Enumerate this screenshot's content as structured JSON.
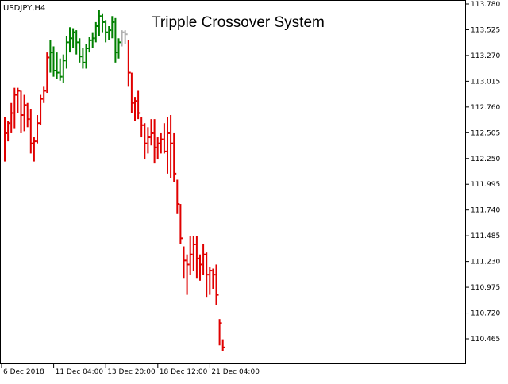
{
  "window": {
    "symbol_timeframe": "USDJPY,H4",
    "title": "Tripple Crossover System"
  },
  "colors": {
    "background": "#ffffff",
    "frame": "#000000",
    "bull": "#008000",
    "bear": "#e00000",
    "neutral": "#b0b0b0"
  },
  "chart_data": {
    "type": "ohlc-bar",
    "title": "Tripple Crossover System",
    "symbol": "USDJPY,H4",
    "y_axis_position": "right",
    "ylim": [
      110.3,
      113.78
    ],
    "y_ticks": [
      "113.780",
      "113.525",
      "113.270",
      "113.015",
      "112.760",
      "112.505",
      "112.250",
      "111.995",
      "111.740",
      "111.485",
      "111.230",
      "110.975",
      "110.720",
      "110.465"
    ],
    "x_ticks": [
      {
        "label": "6 Dec 2018",
        "bar": 0
      },
      {
        "label": "11 Dec 04:00",
        "bar": 16
      },
      {
        "label": "13 Dec 20:00",
        "bar": 32
      },
      {
        "label": "18 Dec 12:00",
        "bar": 48
      },
      {
        "label": "21 Dec 04:00",
        "bar": 64
      }
    ],
    "grid": false,
    "bars": [
      {
        "h": 112.66,
        "l": 112.22,
        "c": 112.5,
        "s": "bear"
      },
      {
        "h": 112.62,
        "l": 112.42,
        "c": 112.6,
        "s": "bear"
      },
      {
        "h": 112.8,
        "l": 112.5,
        "c": 112.7,
        "s": "bear"
      },
      {
        "h": 112.95,
        "l": 112.55,
        "c": 112.88,
        "s": "bear"
      },
      {
        "h": 112.95,
        "l": 112.7,
        "c": 112.92,
        "s": "bear"
      },
      {
        "h": 112.92,
        "l": 112.5,
        "c": 112.68,
        "s": "bear"
      },
      {
        "h": 112.88,
        "l": 112.52,
        "c": 112.78,
        "s": "bear"
      },
      {
        "h": 112.8,
        "l": 112.56,
        "c": 112.64,
        "s": "bear"
      },
      {
        "h": 112.74,
        "l": 112.3,
        "c": 112.4,
        "s": "bear"
      },
      {
        "h": 112.46,
        "l": 112.22,
        "c": 112.42,
        "s": "bear"
      },
      {
        "h": 112.68,
        "l": 112.4,
        "c": 112.6,
        "s": "bear"
      },
      {
        "h": 112.88,
        "l": 112.58,
        "c": 112.84,
        "s": "bear"
      },
      {
        "h": 112.96,
        "l": 112.8,
        "c": 112.92,
        "s": "bear"
      },
      {
        "h": 113.3,
        "l": 112.9,
        "c": 113.25,
        "s": "bear"
      },
      {
        "h": 113.42,
        "l": 113.1,
        "c": 113.3,
        "s": "bull"
      },
      {
        "h": 113.36,
        "l": 113.06,
        "c": 113.12,
        "s": "bull"
      },
      {
        "h": 113.3,
        "l": 113.04,
        "c": 113.1,
        "s": "bull"
      },
      {
        "h": 113.24,
        "l": 113.02,
        "c": 113.06,
        "s": "bull"
      },
      {
        "h": 113.28,
        "l": 113.0,
        "c": 113.22,
        "s": "bull"
      },
      {
        "h": 113.46,
        "l": 113.14,
        "c": 113.4,
        "s": "bull"
      },
      {
        "h": 113.55,
        "l": 113.3,
        "c": 113.44,
        "s": "bull"
      },
      {
        "h": 113.54,
        "l": 113.34,
        "c": 113.5,
        "s": "bull"
      },
      {
        "h": 113.52,
        "l": 113.28,
        "c": 113.4,
        "s": "bull"
      },
      {
        "h": 113.44,
        "l": 113.2,
        "c": 113.26,
        "s": "bull"
      },
      {
        "h": 113.34,
        "l": 113.14,
        "c": 113.2,
        "s": "bull"
      },
      {
        "h": 113.38,
        "l": 113.14,
        "c": 113.34,
        "s": "bull"
      },
      {
        "h": 113.45,
        "l": 113.3,
        "c": 113.42,
        "s": "bull"
      },
      {
        "h": 113.5,
        "l": 113.34,
        "c": 113.44,
        "s": "bull"
      },
      {
        "h": 113.6,
        "l": 113.4,
        "c": 113.56,
        "s": "bull"
      },
      {
        "h": 113.72,
        "l": 113.46,
        "c": 113.66,
        "s": "bull"
      },
      {
        "h": 113.68,
        "l": 113.5,
        "c": 113.6,
        "s": "bull"
      },
      {
        "h": 113.62,
        "l": 113.4,
        "c": 113.5,
        "s": "bull"
      },
      {
        "h": 113.56,
        "l": 113.42,
        "c": 113.52,
        "s": "bull"
      },
      {
        "h": 113.66,
        "l": 113.44,
        "c": 113.6,
        "s": "bull"
      },
      {
        "h": 113.64,
        "l": 113.2,
        "c": 113.3,
        "s": "bull"
      },
      {
        "h": 113.44,
        "l": 113.24,
        "c": 113.4,
        "s": "bull"
      },
      {
        "h": 113.52,
        "l": 113.36,
        "c": 113.5,
        "s": "neutral"
      },
      {
        "h": 113.52,
        "l": 113.38,
        "c": 113.48,
        "s": "neutral"
      },
      {
        "h": 113.42,
        "l": 112.96,
        "c": 113.1,
        "s": "bear"
      },
      {
        "h": 113.1,
        "l": 112.7,
        "c": 112.8,
        "s": "bear"
      },
      {
        "h": 112.86,
        "l": 112.62,
        "c": 112.82,
        "s": "bear"
      },
      {
        "h": 112.92,
        "l": 112.64,
        "c": 112.7,
        "s": "bear"
      },
      {
        "h": 112.66,
        "l": 112.46,
        "c": 112.58,
        "s": "bear"
      },
      {
        "h": 112.6,
        "l": 112.24,
        "c": 112.4,
        "s": "bear"
      },
      {
        "h": 112.56,
        "l": 112.3,
        "c": 112.46,
        "s": "bear"
      },
      {
        "h": 112.64,
        "l": 112.38,
        "c": 112.5,
        "s": "bear"
      },
      {
        "h": 112.64,
        "l": 112.2,
        "c": 112.36,
        "s": "bear"
      },
      {
        "h": 112.46,
        "l": 112.24,
        "c": 112.4,
        "s": "bear"
      },
      {
        "h": 112.5,
        "l": 112.3,
        "c": 112.44,
        "s": "bear"
      },
      {
        "h": 112.6,
        "l": 112.3,
        "c": 112.32,
        "s": "bear"
      },
      {
        "h": 112.66,
        "l": 112.1,
        "c": 112.5,
        "s": "bear"
      },
      {
        "h": 112.68,
        "l": 112.06,
        "c": 112.4,
        "s": "bear"
      },
      {
        "h": 112.5,
        "l": 112.02,
        "c": 112.1,
        "s": "bear"
      },
      {
        "h": 112.04,
        "l": 111.7,
        "c": 111.8,
        "s": "bear"
      },
      {
        "h": 111.8,
        "l": 111.4,
        "c": 111.46,
        "s": "bear"
      },
      {
        "h": 111.38,
        "l": 111.06,
        "c": 111.24,
        "s": "bear"
      },
      {
        "h": 111.3,
        "l": 110.9,
        "c": 111.2,
        "s": "bear"
      },
      {
        "h": 111.48,
        "l": 111.1,
        "c": 111.3,
        "s": "bear"
      },
      {
        "h": 111.48,
        "l": 111.14,
        "c": 111.4,
        "s": "bear"
      },
      {
        "h": 111.48,
        "l": 111.06,
        "c": 111.26,
        "s": "bear"
      },
      {
        "h": 111.3,
        "l": 111.04,
        "c": 111.2,
        "s": "bear"
      },
      {
        "h": 111.4,
        "l": 111.1,
        "c": 111.3,
        "s": "bear"
      },
      {
        "h": 111.32,
        "l": 110.88,
        "c": 111.1,
        "s": "bear"
      },
      {
        "h": 111.18,
        "l": 110.9,
        "c": 111.14,
        "s": "bear"
      },
      {
        "h": 111.16,
        "l": 110.96,
        "c": 111.1,
        "s": "bear"
      },
      {
        "h": 111.2,
        "l": 110.8,
        "c": 110.9,
        "s": "bear"
      },
      {
        "h": 110.66,
        "l": 110.4,
        "c": 110.62,
        "s": "bear"
      },
      {
        "h": 110.46,
        "l": 110.34,
        "c": 110.38,
        "s": "bear"
      }
    ]
  }
}
